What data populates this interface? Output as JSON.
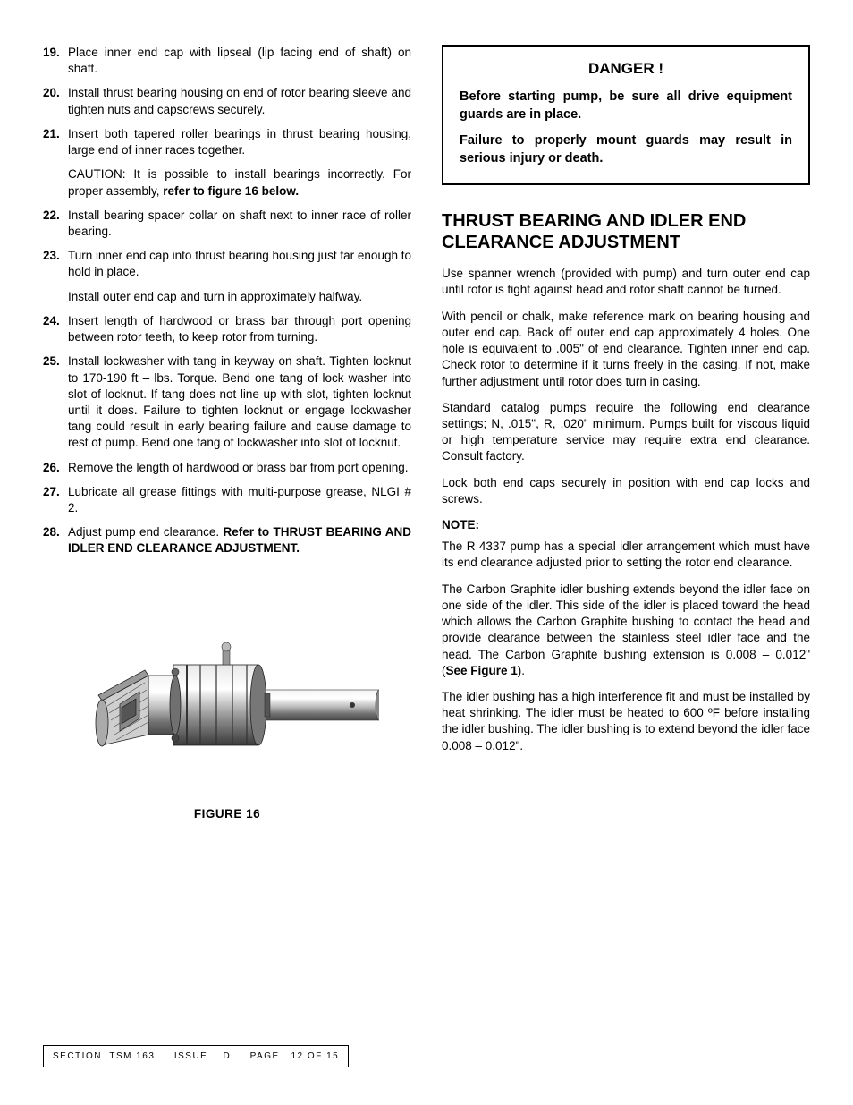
{
  "steps": [
    {
      "n": "19.",
      "t": "Place inner end cap with lipseal (lip facing end of shaft) on shaft."
    },
    {
      "n": "20.",
      "t": "Install thrust bearing housing on end of rotor bearing sleeve and tighten nuts and capscrews securely."
    },
    {
      "n": "21.",
      "t": "Insert both tapered roller bearings in thrust bearing housing, large end of inner races together."
    },
    {
      "sub": true,
      "pre": "CAUTION: It is possible to install bearings incorrectly. For proper assembly, ",
      "bold": "refer to figure 16 below."
    },
    {
      "n": "22.",
      "t": "Install bearing spacer collar on shaft next to inner race of roller bearing."
    },
    {
      "n": "23.",
      "t": "Turn inner end cap into thrust bearing housing just far enough to hold in place."
    },
    {
      "sub": true,
      "pre": "Install outer end cap and turn in approximately halfway."
    },
    {
      "n": "24.",
      "t": "Insert length of hardwood or brass bar through port opening between rotor teeth, to keep rotor from turning."
    },
    {
      "n": "25.",
      "t": "Install lockwasher with tang in keyway on shaft. Tighten locknut to 170-190 ft – lbs. Torque. Bend one tang of lock washer into slot of locknut. If tang does not line up with slot, tighten locknut until it does. Failure to tighten locknut or engage lockwasher tang could result in early bearing failure and cause damage to rest of pump. Bend one tang of lockwasher into slot of locknut."
    },
    {
      "n": "26.",
      "t": "Remove the length of hardwood or brass bar from port opening."
    },
    {
      "n": "27.",
      "t": "Lubricate all grease fittings with multi-purpose grease, NLGI # 2."
    },
    {
      "n": "28.",
      "pre": "Adjust pump end clearance. ",
      "bold": "Refer to THRUST BEARING AND IDLER END CLEARANCE ADJUSTMENT."
    }
  ],
  "figure_caption": "FIGURE 16",
  "danger": {
    "title": "DANGER !",
    "p1": "Before starting pump, be sure all drive equipment guards are in place.",
    "p2": "Failure to properly mount guards may result in serious injury or death."
  },
  "section_heading": "THRUST BEARING AND IDLER END CLEARANCE ADJUSTMENT",
  "body": {
    "p1": "Use spanner wrench (provided with pump) and turn outer end cap until rotor is tight against head and rotor shaft cannot be turned.",
    "p2": "With pencil or chalk, make reference mark on bearing housing and outer end cap. Back off outer end cap approximately 4 holes. One hole is equivalent to .005\" of end clearance. Tighten inner end cap. Check rotor to determine if it turns freely in the casing. If not, make further adjustment until rotor does turn in casing.",
    "p3": "Standard catalog pumps require the following end clearance settings; N, .015\", R, .020\" minimum. Pumps built for viscous liquid or high temperature service may require extra end clearance. Consult factory.",
    "p4": "Lock both end caps securely in position with end cap locks and screws.",
    "note_label": "NOTE:",
    "p5": "The R 4337 pump has a special idler arrangement which must have its end clearance adjusted prior to setting the rotor end clearance.",
    "p6_pre": "The Carbon Graphite idler bushing extends beyond the idler face on one side of the idler. This side of the idler is placed toward the head which allows the Carbon Graphite bushing to contact the head and provide clearance between the stainless steel idler face and the head. The Carbon Graphite bushing extension is 0.008 – 0.012\" (",
    "p6_bold": "See Figure 1",
    "p6_post": ").",
    "p7": "The idler bushing has a high interference fit and must be installed by heat shrinking. The idler must be heated to 600 ºF before installing the idler bushing. The idler bushing is to extend beyond the idler face 0.008 – 0.012\"."
  },
  "footer": {
    "section_label": "SECTION",
    "section_value": "TSM  163",
    "issue_label": "ISSUE",
    "issue_value": "D",
    "page_label": "PAGE",
    "page_value": "12  OF  15"
  },
  "colors": {
    "text": "#000000",
    "bg": "#ffffff",
    "fig_light": "#d8d8d8",
    "fig_mid": "#a8a8a8",
    "fig_dark": "#606060",
    "fig_darker": "#383838"
  }
}
